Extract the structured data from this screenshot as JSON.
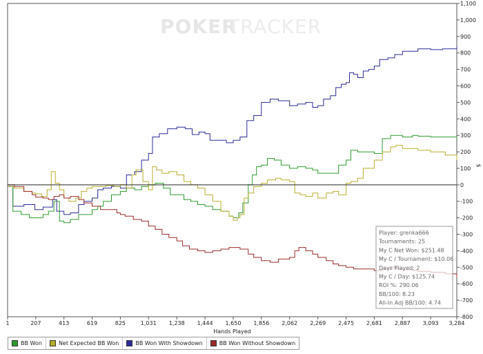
{
  "watermark": {
    "part1": "POKER",
    "part2": "TRACKER"
  },
  "chart_data": {
    "type": "line",
    "xlabel": "Hands Played",
    "ylabel": "$",
    "xlim": [
      1,
      3284
    ],
    "ylim": [
      -800,
      1100
    ],
    "x_ticks": [
      1,
      207,
      413,
      619,
      825,
      1031,
      1238,
      1444,
      1650,
      1856,
      2062,
      2269,
      2475,
      2681,
      2887,
      3093,
      3284
    ],
    "x_tick_labels": [
      "1",
      "207",
      "413",
      "619",
      "825",
      "1,031",
      "1,238",
      "1,444",
      "1,650",
      "1,856",
      "2,062",
      "2,269",
      "2,475",
      "2,681",
      "2,887",
      "3,093",
      "3,284"
    ],
    "y_ticks": [
      -800,
      -700,
      -600,
      -500,
      -400,
      -300,
      -200,
      -100,
      0,
      100,
      200,
      300,
      400,
      500,
      600,
      700,
      800,
      900,
      1000,
      1100
    ],
    "y_tick_labels": [
      "-800",
      "-700",
      "-600",
      "-500",
      "-400",
      "-300",
      "-200",
      "-100",
      "0",
      "100",
      "200",
      "300",
      "400",
      "500",
      "600",
      "700",
      "800",
      "900",
      "1,000",
      "1,100"
    ],
    "grid": false,
    "legend_position": "bottom-left",
    "series": [
      {
        "name": "BB Won With Showdown",
        "color": "#2a2a9a",
        "points": [
          [
            1,
            -10
          ],
          [
            40,
            -130
          ],
          [
            120,
            -120
          ],
          [
            200,
            -150
          ],
          [
            260,
            -135
          ],
          [
            330,
            -90
          ],
          [
            360,
            -160
          ],
          [
            413,
            -180
          ],
          [
            460,
            -170
          ],
          [
            520,
            -120
          ],
          [
            560,
            -100
          ],
          [
            619,
            -80
          ],
          [
            660,
            -30
          ],
          [
            700,
            -20
          ],
          [
            760,
            -10
          ],
          [
            825,
            -20
          ],
          [
            870,
            60
          ],
          [
            930,
            80
          ],
          [
            980,
            150
          ],
          [
            1031,
            190
          ],
          [
            1060,
            290
          ],
          [
            1110,
            310
          ],
          [
            1170,
            340
          ],
          [
            1238,
            350
          ],
          [
            1300,
            340
          ],
          [
            1350,
            305
          ],
          [
            1400,
            320
          ],
          [
            1444,
            310
          ],
          [
            1480,
            270
          ],
          [
            1540,
            270
          ],
          [
            1600,
            255
          ],
          [
            1650,
            270
          ],
          [
            1700,
            290
          ],
          [
            1750,
            390
          ],
          [
            1800,
            420
          ],
          [
            1856,
            500
          ],
          [
            1920,
            520
          ],
          [
            1980,
            510
          ],
          [
            2062,
            480
          ],
          [
            2120,
            490
          ],
          [
            2180,
            500
          ],
          [
            2230,
            470
          ],
          [
            2269,
            480
          ],
          [
            2310,
            520
          ],
          [
            2360,
            540
          ],
          [
            2400,
            590
          ],
          [
            2440,
            610
          ],
          [
            2475,
            620
          ],
          [
            2500,
            680
          ],
          [
            2530,
            670
          ],
          [
            2560,
            650
          ],
          [
            2600,
            690
          ],
          [
            2640,
            700
          ],
          [
            2681,
            720
          ],
          [
            2720,
            760
          ],
          [
            2780,
            770
          ],
          [
            2830,
            790
          ],
          [
            2887,
            810
          ],
          [
            2950,
            810
          ],
          [
            3000,
            825
          ],
          [
            3093,
            820
          ],
          [
            3180,
            825
          ],
          [
            3284,
            840
          ]
        ]
      },
      {
        "name": "BB Won",
        "color": "#2e9a2e",
        "points": [
          [
            1,
            -10
          ],
          [
            40,
            -160
          ],
          [
            100,
            -180
          ],
          [
            160,
            -200
          ],
          [
            207,
            -200
          ],
          [
            260,
            -180
          ],
          [
            300,
            -160
          ],
          [
            340,
            -100
          ],
          [
            380,
            -220
          ],
          [
            413,
            -230
          ],
          [
            460,
            -210
          ],
          [
            520,
            -180
          ],
          [
            560,
            -180
          ],
          [
            619,
            -150
          ],
          [
            660,
            -130
          ],
          [
            700,
            -100
          ],
          [
            760,
            -60
          ],
          [
            825,
            -40
          ],
          [
            870,
            -20
          ],
          [
            930,
            -30
          ],
          [
            980,
            -10
          ],
          [
            1031,
            0
          ],
          [
            1080,
            10
          ],
          [
            1140,
            -20
          ],
          [
            1190,
            -60
          ],
          [
            1238,
            -60
          ],
          [
            1290,
            -90
          ],
          [
            1340,
            -100
          ],
          [
            1390,
            -120
          ],
          [
            1444,
            -130
          ],
          [
            1500,
            -150
          ],
          [
            1560,
            -160
          ],
          [
            1620,
            -190
          ],
          [
            1650,
            -200
          ],
          [
            1690,
            -170
          ],
          [
            1720,
            -110
          ],
          [
            1760,
            0
          ],
          [
            1790,
            60
          ],
          [
            1820,
            110
          ],
          [
            1856,
            120
          ],
          [
            1900,
            160
          ],
          [
            1950,
            150
          ],
          [
            2000,
            120
          ],
          [
            2062,
            100
          ],
          [
            2120,
            110
          ],
          [
            2180,
            100
          ],
          [
            2230,
            90
          ],
          [
            2269,
            70
          ],
          [
            2320,
            70
          ],
          [
            2380,
            70
          ],
          [
            2420,
            120
          ],
          [
            2475,
            150
          ],
          [
            2510,
            210
          ],
          [
            2560,
            200
          ],
          [
            2600,
            200
          ],
          [
            2681,
            190
          ],
          [
            2740,
            280
          ],
          [
            2800,
            300
          ],
          [
            2840,
            300
          ],
          [
            2887,
            290
          ],
          [
            2960,
            300
          ],
          [
            3000,
            295
          ],
          [
            3093,
            290
          ],
          [
            3200,
            290
          ],
          [
            3284,
            280
          ]
        ]
      },
      {
        "name": "Net Expected BB Won",
        "color": "#b8ad2f",
        "points": [
          [
            1,
            -10
          ],
          [
            50,
            -20
          ],
          [
            120,
            -40
          ],
          [
            180,
            -50
          ],
          [
            207,
            -55
          ],
          [
            250,
            -70
          ],
          [
            290,
            -30
          ],
          [
            320,
            80
          ],
          [
            350,
            10
          ],
          [
            380,
            -30
          ],
          [
            413,
            -80
          ],
          [
            450,
            -100
          ],
          [
            500,
            -80
          ],
          [
            540,
            -40
          ],
          [
            580,
            -20
          ],
          [
            619,
            -10
          ],
          [
            660,
            -10
          ],
          [
            720,
            -5
          ],
          [
            780,
            -10
          ],
          [
            825,
            0
          ],
          [
            870,
            -20
          ],
          [
            910,
            60
          ],
          [
            940,
            90
          ],
          [
            990,
            20
          ],
          [
            1031,
            -30
          ],
          [
            1060,
            110
          ],
          [
            1090,
            90
          ],
          [
            1130,
            70
          ],
          [
            1180,
            80
          ],
          [
            1238,
            60
          ],
          [
            1290,
            20
          ],
          [
            1340,
            0
          ],
          [
            1390,
            -20
          ],
          [
            1444,
            -60
          ],
          [
            1500,
            -100
          ],
          [
            1560,
            -160
          ],
          [
            1620,
            -190
          ],
          [
            1650,
            -215
          ],
          [
            1680,
            -200
          ],
          [
            1700,
            -180
          ],
          [
            1730,
            -80
          ],
          [
            1760,
            -50
          ],
          [
            1800,
            -10
          ],
          [
            1856,
            10
          ],
          [
            1900,
            30
          ],
          [
            1960,
            40
          ],
          [
            2000,
            30
          ],
          [
            2062,
            20
          ],
          [
            2100,
            -50
          ],
          [
            2140,
            -60
          ],
          [
            2180,
            -70
          ],
          [
            2230,
            -50
          ],
          [
            2269,
            -80
          ],
          [
            2330,
            -50
          ],
          [
            2380,
            -40
          ],
          [
            2420,
            -60
          ],
          [
            2475,
            10
          ],
          [
            2510,
            20
          ],
          [
            2560,
            40
          ],
          [
            2600,
            100
          ],
          [
            2681,
            150
          ],
          [
            2740,
            200
          ],
          [
            2800,
            230
          ],
          [
            2840,
            240
          ],
          [
            2887,
            220
          ],
          [
            2960,
            220
          ],
          [
            3000,
            210
          ],
          [
            3093,
            200
          ],
          [
            3200,
            180
          ],
          [
            3284,
            150
          ]
        ]
      },
      {
        "name": "BB Won Without Showdown",
        "color": "#9a2a2a",
        "points": [
          [
            1,
            0
          ],
          [
            50,
            -10
          ],
          [
            120,
            -40
          ],
          [
            180,
            -60
          ],
          [
            207,
            -75
          ],
          [
            260,
            -80
          ],
          [
            300,
            -90
          ],
          [
            340,
            -70
          ],
          [
            380,
            -60
          ],
          [
            413,
            -80
          ],
          [
            460,
            -70
          ],
          [
            520,
            -90
          ],
          [
            560,
            -110
          ],
          [
            619,
            -130
          ],
          [
            680,
            -150
          ],
          [
            740,
            -150
          ],
          [
            800,
            -170
          ],
          [
            825,
            -180
          ],
          [
            860,
            -190
          ],
          [
            920,
            -210
          ],
          [
            980,
            -220
          ],
          [
            1031,
            -250
          ],
          [
            1080,
            -270
          ],
          [
            1130,
            -300
          ],
          [
            1180,
            -320
          ],
          [
            1238,
            -340
          ],
          [
            1280,
            -370
          ],
          [
            1330,
            -390
          ],
          [
            1390,
            -400
          ],
          [
            1444,
            -410
          ],
          [
            1500,
            -400
          ],
          [
            1560,
            -390
          ],
          [
            1620,
            -380
          ],
          [
            1650,
            -380
          ],
          [
            1700,
            -390
          ],
          [
            1760,
            -420
          ],
          [
            1800,
            -440
          ],
          [
            1856,
            -460
          ],
          [
            1920,
            -470
          ],
          [
            1980,
            -450
          ],
          [
            2062,
            -440
          ],
          [
            2100,
            -400
          ],
          [
            2130,
            -380
          ],
          [
            2180,
            -400
          ],
          [
            2230,
            -420
          ],
          [
            2269,
            -440
          ],
          [
            2330,
            -460
          ],
          [
            2380,
            -480
          ],
          [
            2420,
            -490
          ],
          [
            2475,
            -500
          ],
          [
            2530,
            -510
          ],
          [
            2600,
            -510
          ],
          [
            2681,
            -520
          ],
          [
            2740,
            -510
          ],
          [
            2800,
            -500
          ],
          [
            2840,
            -510
          ],
          [
            2887,
            -515
          ],
          [
            2960,
            -520
          ],
          [
            3000,
            -525
          ],
          [
            3093,
            -530
          ],
          [
            3200,
            -540
          ],
          [
            3284,
            -560
          ]
        ]
      }
    ]
  },
  "stats": [
    "Player: grenka666",
    "Tournaments: 25",
    "My C Net Won: $251.48",
    "My C / Tournament: $10.06",
    "Days Played: 2",
    "My C / Day: $125.74",
    "ROI %: 290.06",
    "BB/100: 8.23",
    "All-In Adj BB/100: 4.74"
  ],
  "legend": [
    {
      "label": "BB Won",
      "color": "#2e9a2e"
    },
    {
      "label": "Net Expected BB Won",
      "color": "#b8ad2f"
    },
    {
      "label": "BB Won With Showdown",
      "color": "#2a2a9a"
    },
    {
      "label": "BB Won Without Showdown",
      "color": "#9a2a2a"
    }
  ]
}
